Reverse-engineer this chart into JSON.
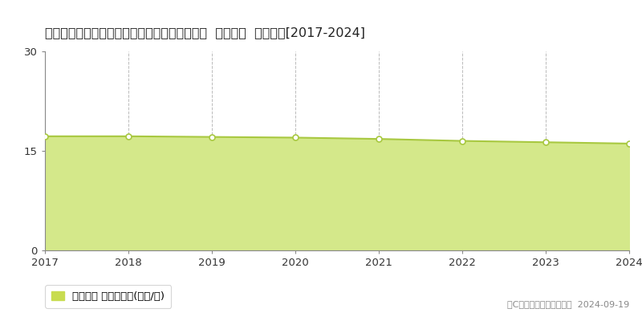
{
  "title": "静岡県静岡市清水区草ヶ谷字足高２９９番７外  基準地価  地価推移[2017-2024]",
  "years": [
    2017,
    2018,
    2019,
    2020,
    2021,
    2022,
    2023,
    2024
  ],
  "values": [
    17.2,
    17.2,
    17.1,
    17.0,
    16.8,
    16.5,
    16.3,
    16.1
  ],
  "line_color": "#a8c840",
  "fill_color": "#d4e88a",
  "marker_color": "#ffffff",
  "marker_edge_color": "#a8c840",
  "ylim": [
    0,
    30
  ],
  "yticks": [
    0,
    15,
    30
  ],
  "background_color": "#ffffff",
  "grid_color": "#bbbbbb",
  "legend_label": "基準地価 平均坪単価(万円/坪)",
  "legend_color": "#c8dc50",
  "copyright_text": "（C）土地価格ドットコム  2024-09-19",
  "title_fontsize": 11.5,
  "tick_fontsize": 9.5,
  "legend_fontsize": 9.5,
  "copyright_fontsize": 8
}
